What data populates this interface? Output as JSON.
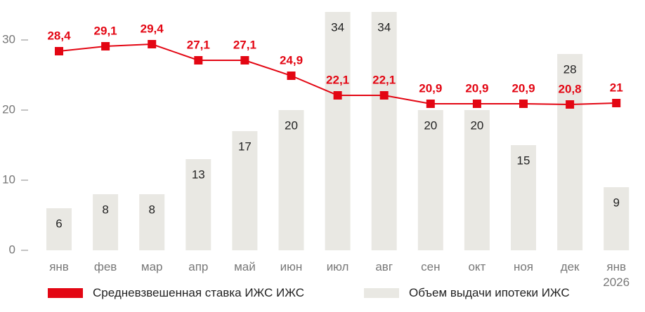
{
  "chart_data": {
    "type": "combo",
    "categories": [
      "янв",
      "фев",
      "мар",
      "апр",
      "май",
      "июн",
      "июл",
      "авг",
      "сен",
      "окт",
      "ноя",
      "дек",
      "янв 2026"
    ],
    "series": [
      {
        "name": "Объем выдачи ипотеки ИЖС",
        "type": "bar",
        "color": "#e9e8e3",
        "values": [
          6,
          8,
          8,
          13,
          17,
          20,
          34,
          34,
          20,
          20,
          15,
          28,
          9
        ]
      },
      {
        "name": "Средневзвешенная ставка ИЖС ИЖС",
        "type": "line",
        "color": "#e30613",
        "values": [
          28.4,
          29.1,
          29.4,
          27.1,
          27.1,
          24.9,
          22.1,
          22.1,
          20.9,
          20.9,
          20.9,
          20.8,
          21
        ],
        "value_labels": [
          "28,4",
          "29,1",
          "29,4",
          "27,1",
          "27,1",
          "24,9",
          "22,1",
          "22,1",
          "20,9",
          "20,9",
          "20,9",
          "20,8",
          "21"
        ]
      }
    ],
    "ylim": [
      0,
      34
    ],
    "yticks": [
      0,
      10,
      20,
      30
    ]
  }
}
